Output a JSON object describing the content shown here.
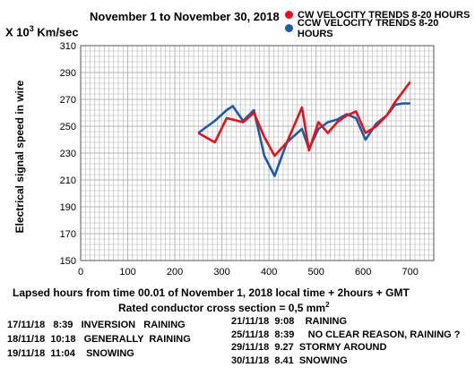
{
  "header": {
    "title": "November 1 to November 30, 2018",
    "y_unit_prefix": "X 10",
    "y_unit_exp": "3",
    "y_unit_suffix": " Km/sec"
  },
  "legend": {
    "items": [
      {
        "label": "CW VELOCITY TRENDS 8-20 HOURS",
        "color": "#e8101a"
      },
      {
        "label": "CCW VELOCITY TRENDS 8-20 HOURS",
        "color": "#1f5aa8"
      }
    ]
  },
  "axes": {
    "ylabel": "Electrical signal speed in wire",
    "xlabel": "Lapsed hours from time 00.01 of November 1, 2018  local time  + 2hours + GMT",
    "subtitle_text": "Rated conductor cross section = 0,5 mm",
    "subtitle_exp": "2"
  },
  "notes": {
    "left": [
      "17/11/18   8:39   INVERSION   RAINING",
      "18/11/18  10:18   GENERALLY  RAINING",
      "19/11/18  11:04    SNOWING"
    ],
    "right": [
      "21/11/18  9:08    RAINING",
      "25/11/18  8:39     NO CLEAR REASON, RAINING ?",
      "29/11/18  9.27  STORMY AROUND",
      "30/11/18  8.41  SNOWING"
    ]
  },
  "chart_data": {
    "type": "line",
    "xlim": [
      0,
      750
    ],
    "ylim": [
      150,
      310
    ],
    "x_ticks": [
      0,
      100,
      200,
      300,
      400,
      500,
      600,
      700
    ],
    "y_ticks": [
      150,
      170,
      190,
      210,
      230,
      250,
      270,
      290,
      310
    ],
    "grid": true,
    "series": [
      {
        "name": "CW VELOCITY TRENDS 8-20 HOURS",
        "color": "#e8101a",
        "x": [
          250,
          285,
          310,
          323,
          345,
          368,
          390,
          412,
          438,
          470,
          485,
          505,
          525,
          545,
          565,
          585,
          605,
          628,
          650,
          668,
          685,
          700
        ],
        "y": [
          245,
          238,
          256,
          255,
          253,
          260,
          242,
          228,
          238,
          264,
          232,
          253,
          245,
          253,
          258,
          261,
          245,
          250,
          258,
          268,
          276,
          283
        ]
      },
      {
        "name": "CCW VELOCITY TRENDS 8-20 HOURS",
        "color": "#1f5aa8",
        "x": [
          250,
          285,
          310,
          323,
          345,
          368,
          390,
          412,
          438,
          470,
          485,
          505,
          525,
          545,
          565,
          585,
          605,
          628,
          650,
          668,
          685,
          700
        ],
        "y": [
          245,
          254,
          262,
          265,
          254,
          262,
          228,
          213,
          238,
          248,
          233,
          248,
          253,
          255,
          259,
          256,
          240,
          252,
          258,
          266,
          267,
          267
        ]
      }
    ]
  }
}
